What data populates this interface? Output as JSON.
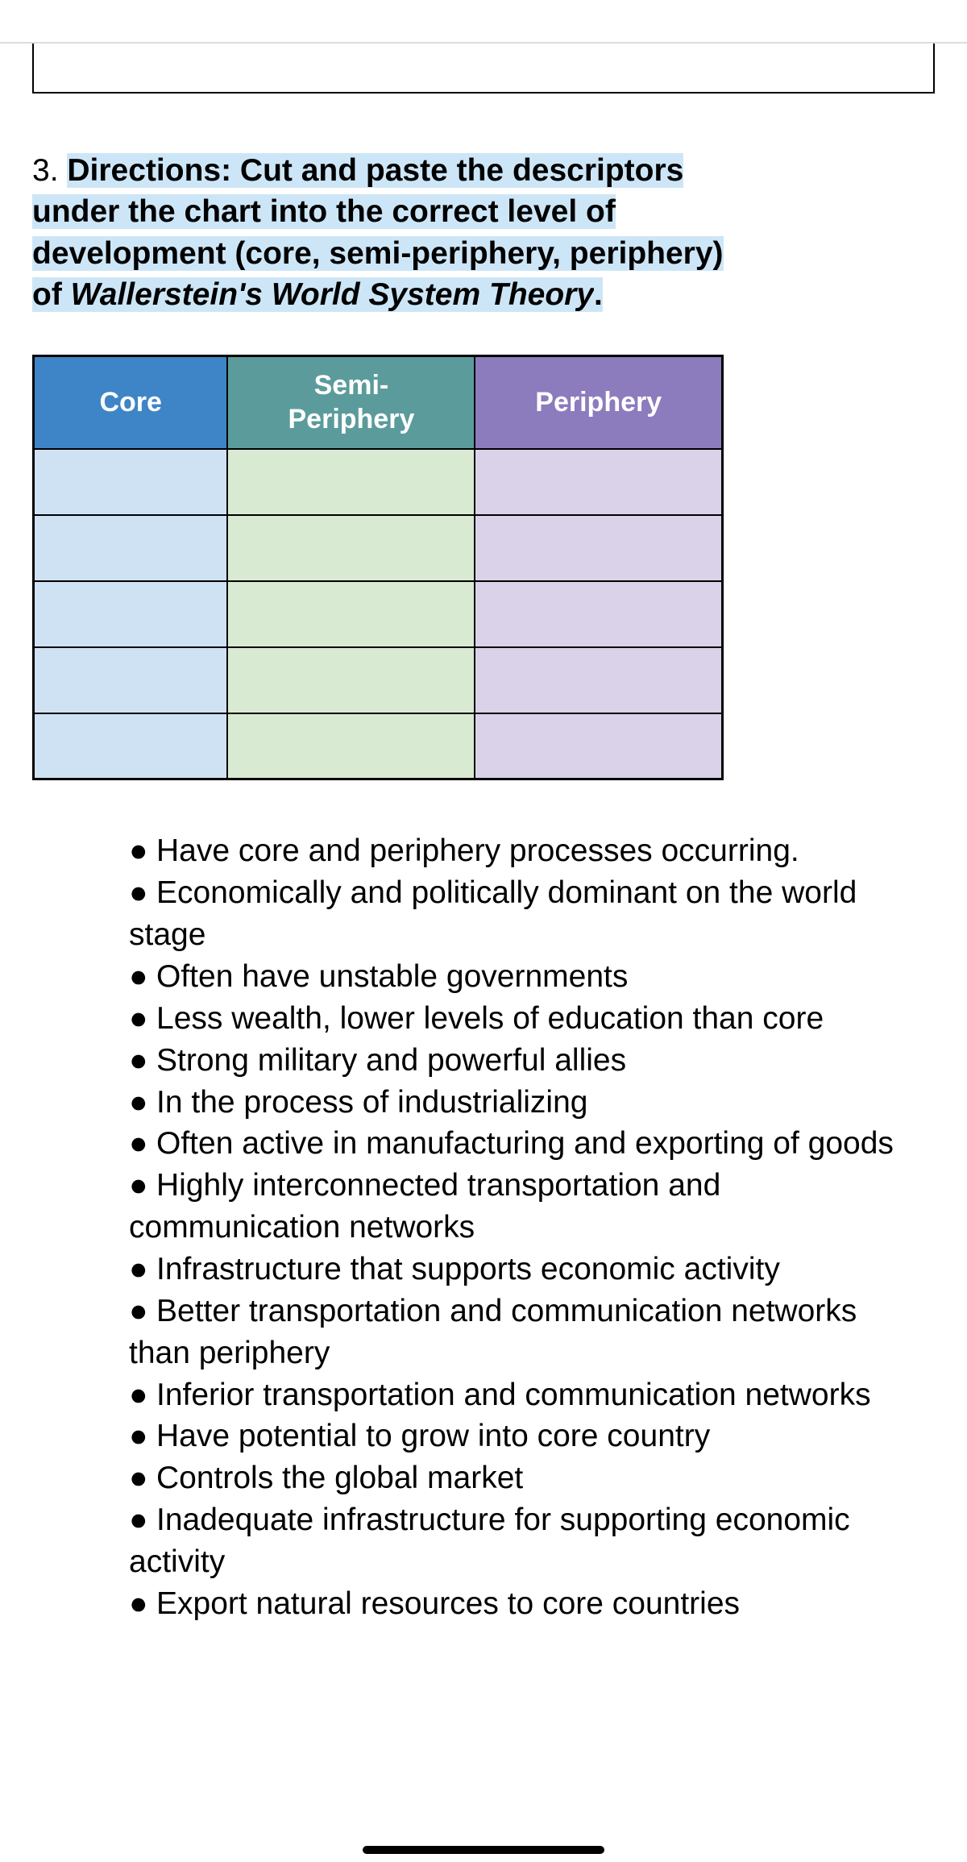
{
  "directions": {
    "number": "3.",
    "line1_a": "Directions: Cut and paste the descriptors",
    "line2": "under the chart into the correct level of",
    "line3": "development (core, semi-periphery, periphery)",
    "line4_a": "of ",
    "line4_b_italic": "Wallerstein's World System Theory",
    "line4_c": "."
  },
  "table": {
    "headers": {
      "core": "Core",
      "semi": "Semi-\nPeriphery",
      "periphery": "Periphery"
    },
    "row_count": 5,
    "colors": {
      "core_header_bg": "#3d85c6",
      "semi_header_bg": "#5b9b9b",
      "periphery_header_bg": "#8c7bbd",
      "core_cell_bg": "#cfe2f3",
      "semi_cell_bg": "#d9ead3",
      "periphery_cell_bg": "#d9d2e9",
      "header_text": "#ffffff",
      "border": "#000000"
    }
  },
  "descriptors": [
    "Have core and periphery processes occurring.",
    "Economically and politically dominant on the world stage",
    "Often have unstable governments",
    "Less wealth, lower levels of education than core",
    "Strong military and powerful allies",
    "In the process of industrializing",
    "Often active in manufacturing and exporting of goods",
    "Highly interconnected transportation and communication networks",
    "Infrastructure that supports economic activity",
    "Better transportation and communication networks than periphery",
    "Inferior transportation and communication networks",
    "Have potential to grow into core country",
    "Controls the global market",
    "Inadequate infrastructure for supporting economic activity",
    "Export natural resources to core countries"
  ],
  "highlight_color": "#cde6f7",
  "background_color": "#ffffff",
  "text_color": "#000000",
  "font_family": "Arial",
  "directions_fontsize_pt": 29,
  "bullets_fontsize_pt": 29
}
